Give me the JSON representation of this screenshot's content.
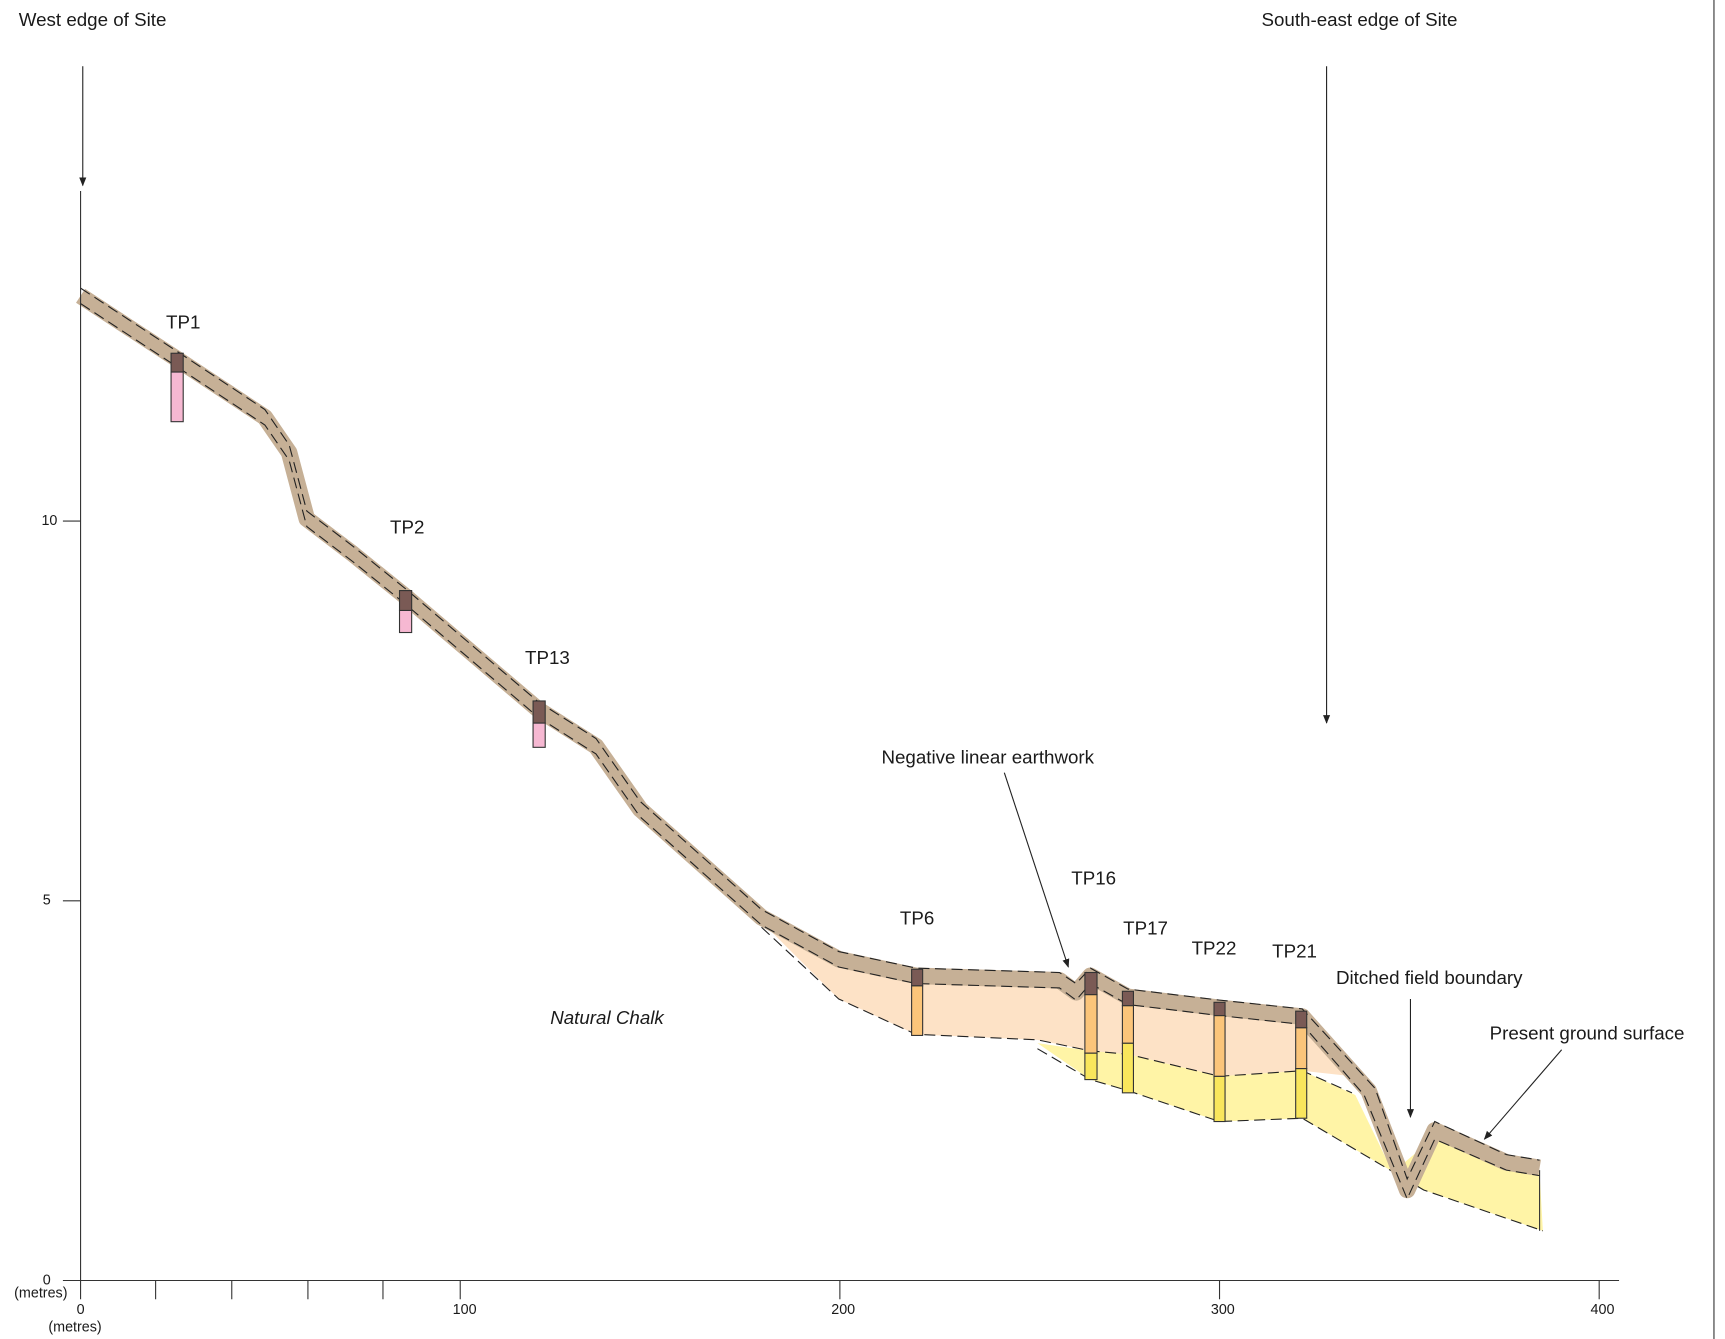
{
  "header": {
    "west_label": "West edge of Site",
    "southeast_label": "South-east edge of Site"
  },
  "axes": {
    "y_ticks": [
      "0",
      "5",
      "10"
    ],
    "y_unit": "(metres)",
    "x_ticks": [
      "0",
      "100",
      "200",
      "300",
      "400"
    ],
    "x_unit": "(metres)"
  },
  "test_pits": [
    "TP1",
    "TP2",
    "TP13",
    "TP6",
    "TP16",
    "TP17",
    "TP22",
    "TP21"
  ],
  "annotations": {
    "earthwork": "Negative linear earthwork",
    "boundary": "Ditched field boundary",
    "surface": "Present ground surface",
    "chalk": "Natural Chalk"
  }
}
